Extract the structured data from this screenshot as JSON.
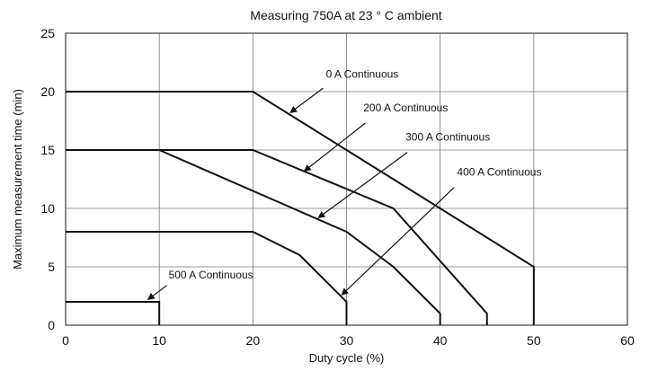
{
  "chart_data": {
    "type": "line",
    "title": "Measuring 750A at 23 ° C ambient",
    "xlabel": "Duty cycle (%)",
    "ylabel": "Maximum measurement  time (min)",
    "xlim": [
      0,
      60
    ],
    "ylim": [
      0,
      25
    ],
    "xticks": [
      0,
      10,
      20,
      30,
      40,
      50,
      60
    ],
    "yticks": [
      0,
      5,
      10,
      15,
      20,
      25
    ],
    "grid": true,
    "series": [
      {
        "name": "0 A Continuous",
        "points": [
          [
            0,
            20
          ],
          [
            20,
            20
          ],
          [
            50,
            5
          ],
          [
            50,
            0
          ]
        ]
      },
      {
        "name": "200 A Continuous",
        "points": [
          [
            0,
            15
          ],
          [
            20,
            15
          ],
          [
            35,
            10
          ],
          [
            45,
            1
          ],
          [
            45,
            0
          ]
        ]
      },
      {
        "name": "300 A Continuous",
        "points": [
          [
            0,
            15
          ],
          [
            10,
            15
          ],
          [
            30,
            8
          ],
          [
            35,
            5
          ],
          [
            40,
            1
          ],
          [
            40,
            0
          ]
        ]
      },
      {
        "name": "400 A Continuous",
        "points": [
          [
            0,
            8
          ],
          [
            20,
            8
          ],
          [
            25,
            6
          ],
          [
            30,
            2
          ],
          [
            30,
            0
          ]
        ]
      },
      {
        "name": "500 A Continuous",
        "points": [
          [
            0,
            2
          ],
          [
            10,
            2
          ],
          [
            10,
            0
          ]
        ]
      }
    ],
    "annotations": [
      {
        "text": "0 A Continuous",
        "label_at": [
          27.8,
          21.2
        ],
        "arrow_from": [
          27.5,
          20.3
        ],
        "arrow_to": [
          24.0,
          18.2
        ]
      },
      {
        "text": "200 A Continuous",
        "label_at": [
          31.8,
          18.3
        ],
        "arrow_from": [
          32.0,
          17.3
        ],
        "arrow_to": [
          25.5,
          13.2
        ]
      },
      {
        "text": "300 A Continuous",
        "label_at": [
          36.3,
          15.8
        ],
        "arrow_from": [
          36.5,
          14.8
        ],
        "arrow_to": [
          27.0,
          9.2
        ]
      },
      {
        "text": "400 A Continuous",
        "label_at": [
          41.8,
          12.8
        ],
        "arrow_from": [
          41.5,
          11.8
        ],
        "arrow_to": [
          29.5,
          2.6
        ]
      },
      {
        "text": "500 A Continuous",
        "label_at": [
          11.0,
          4.0
        ],
        "arrow_from": [
          10.8,
          3.4
        ],
        "arrow_to": [
          8.8,
          2.2
        ]
      }
    ]
  }
}
